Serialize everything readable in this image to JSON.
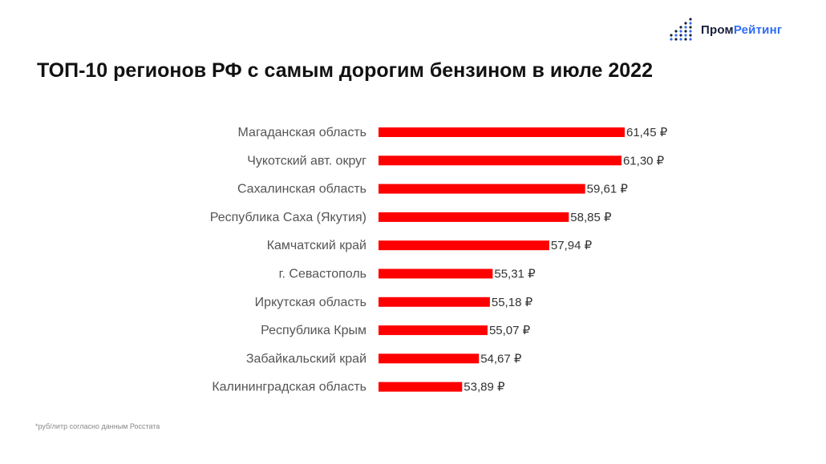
{
  "brand": {
    "name_part1": "Пром",
    "name_part2": "Рейтинг",
    "logo_icon": "dot-grid-bars-icon",
    "colors": {
      "dark": "#1a1f3a",
      "blue": "#2f6cf6"
    }
  },
  "title": "ТОП-10 регионов РФ с самым дорогим бензином в июле 2022",
  "footnote": "*руб/литр согласно данным Росстата",
  "chart_data": {
    "type": "bar",
    "orientation": "horizontal",
    "categories": [
      "Магаданская область",
      "Чукотский авт. округ",
      "Сахалинская область",
      "Республика Саха (Якутия)",
      "Камчатский край",
      "г. Севастополь",
      "Иркутская область",
      "Республика Крым",
      "Забайкальский край",
      "Калининградская область"
    ],
    "values": [
      61.45,
      61.3,
      59.61,
      58.85,
      57.94,
      55.31,
      55.18,
      55.07,
      54.67,
      53.89
    ],
    "value_labels": [
      "61,45 ₽",
      "61,30 ₽",
      "59,61 ₽",
      "58,85 ₽",
      "57,94 ₽",
      "55,31 ₽",
      "55,18 ₽",
      "55,07 ₽",
      "54,67 ₽",
      "53,89 ₽"
    ],
    "bar_color": "#ff0000",
    "xlim": [
      50,
      61.45
    ],
    "grid": false,
    "axes_visible": false
  }
}
